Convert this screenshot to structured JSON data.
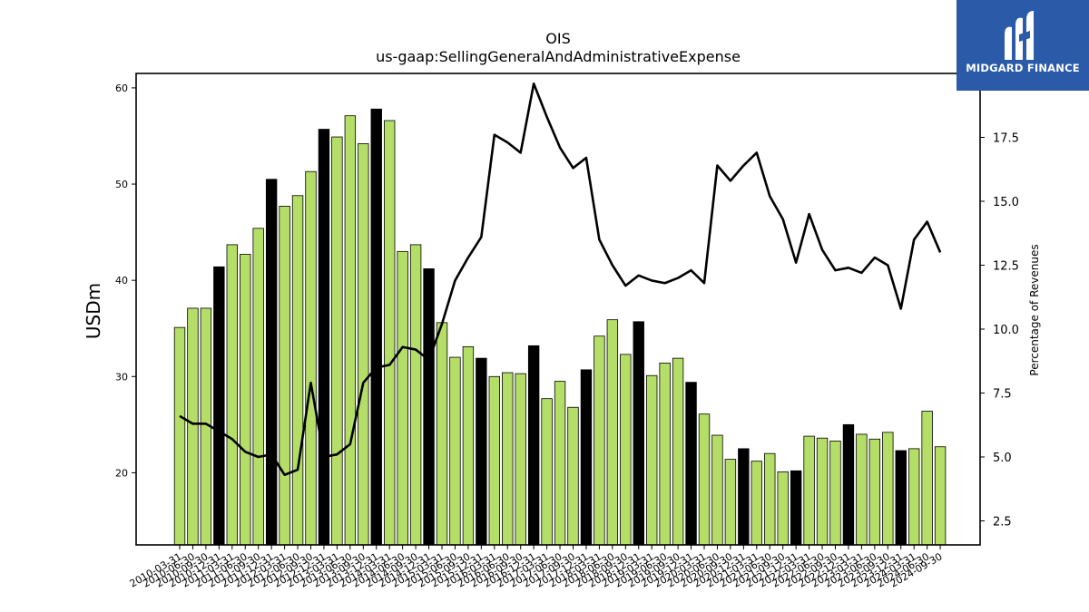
{
  "brand": {
    "name": "MIDGARD FINANCE",
    "bg_color": "#2a5aa8"
  },
  "chart_data": {
    "type": "bar",
    "title": "OIS",
    "subtitle": "us-gaap:SellingGeneralAndAdministrativeExpense",
    "ylabel": "USDm",
    "y2label": "Percentage of Revenues",
    "ylim": [
      12.5,
      61.5
    ],
    "y2lim": [
      1.56,
      20.0
    ],
    "yticks": [
      20,
      30,
      40,
      50,
      60
    ],
    "y2ticks": [
      2.5,
      5.0,
      7.5,
      10.0,
      12.5,
      15.0,
      17.5
    ],
    "colors": {
      "quarter": "#b5de68",
      "fiscal_year": "#000000",
      "line": "#000000"
    },
    "categories": [
      "2010-03-31",
      "2010-06-30",
      "2010-09-30",
      "2010-12-31",
      "2011-03-31",
      "2011-06-30",
      "2011-09-30",
      "2011-12-31",
      "2012-03-31",
      "2012-06-30",
      "2012-09-30",
      "2012-12-31",
      "2013-03-31",
      "2013-06-30",
      "2013-09-30",
      "2013-12-31",
      "2014-03-31",
      "2014-06-30",
      "2014-09-30",
      "2014-12-31",
      "2015-03-31",
      "2015-06-30",
      "2015-09-30",
      "2015-12-31",
      "2016-03-31",
      "2016-06-30",
      "2016-09-30",
      "2016-12-31",
      "2017-03-31",
      "2017-06-30",
      "2017-09-30",
      "2017-12-31",
      "2018-03-31",
      "2018-06-30",
      "2018-09-30",
      "2018-12-31",
      "2019-03-31",
      "2019-06-30",
      "2019-09-30",
      "2019-12-31",
      "2020-03-31",
      "2020-06-30",
      "2020-09-30",
      "2020-12-31",
      "2021-03-31",
      "2021-06-30",
      "2021-09-30",
      "2021-12-31",
      "2022-03-31",
      "2022-06-30",
      "2022-09-30",
      "2022-12-31",
      "2023-03-31",
      "2023-06-30",
      "2023-09-30",
      "2023-12-31",
      "2024-03-31",
      "2024-06-30",
      "2024-09-30"
    ],
    "series": [
      {
        "values": [
          35.1,
          37.1,
          37.1,
          41.4,
          43.7,
          42.7,
          45.4,
          50.5,
          47.7,
          48.8,
          51.3,
          55.7,
          54.9,
          57.1,
          54.2,
          57.8,
          56.6,
          43.0,
          43.7,
          41.2,
          35.6,
          32.0,
          33.1,
          31.9,
          30.0,
          30.4,
          30.3,
          33.2,
          27.7,
          29.5,
          26.8,
          30.7,
          34.2,
          35.9,
          32.3,
          35.7,
          30.1,
          31.4,
          31.9,
          29.4,
          26.1,
          23.9,
          21.4,
          22.5,
          21.2,
          22.0,
          20.1,
          20.2,
          23.8,
          23.6,
          23.3,
          25.0,
          24.0,
          23.5,
          24.2,
          22.3,
          22.5,
          26.4,
          22.7
        ],
        "fiscal_year": [
          false,
          false,
          false,
          true,
          false,
          false,
          false,
          true,
          false,
          false,
          false,
          true,
          false,
          false,
          false,
          true,
          false,
          false,
          false,
          true,
          false,
          false,
          false,
          true,
          false,
          false,
          false,
          true,
          false,
          false,
          false,
          true,
          false,
          false,
          false,
          true,
          false,
          false,
          false,
          true,
          false,
          false,
          false,
          true,
          false,
          false,
          false,
          true,
          false,
          false,
          false,
          true,
          false,
          false,
          false,
          true,
          false,
          false,
          false
        ]
      },
      {
        "axis": "right",
        "type": "line",
        "values": [
          6.6,
          6.3,
          6.3,
          6.0,
          5.7,
          5.2,
          5.0,
          5.1,
          4.3,
          4.5,
          7.9,
          5.0,
          5.1,
          5.5,
          7.9,
          8.5,
          8.6,
          9.3,
          9.2,
          8.8,
          10.2,
          11.9,
          12.8,
          13.6,
          17.6,
          17.3,
          16.9,
          19.6,
          18.3,
          17.1,
          16.3,
          16.7,
          13.5,
          12.5,
          11.7,
          12.1,
          11.9,
          11.8,
          12.0,
          12.3,
          11.8,
          16.4,
          15.8,
          16.4,
          16.9,
          15.2,
          14.3,
          12.6,
          14.5,
          13.1,
          12.3,
          12.4,
          12.2,
          12.8,
          12.5,
          10.8,
          13.5,
          14.2,
          13.0
        ]
      }
    ]
  }
}
